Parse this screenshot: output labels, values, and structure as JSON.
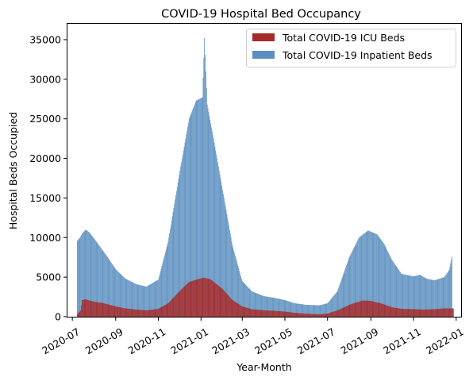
{
  "chart_data": {
    "type": "bar",
    "stacking": "overlay",
    "title": "COVID-19 Hospital Bed Occupancy",
    "xlabel": "Year-Month",
    "ylabel": "Hospital Beds Occupied",
    "xlim": [
      "2020-06-24",
      "2022-01-08"
    ],
    "ylim": [
      0,
      37000
    ],
    "x_ticks": [
      "2020-07",
      "2020-09",
      "2020-11",
      "2021-01",
      "2021-03",
      "2021-05",
      "2021-07",
      "2021-09",
      "2021-11",
      "2022-01"
    ],
    "y_ticks": [
      0,
      5000,
      10000,
      15000,
      20000,
      25000,
      30000,
      35000
    ],
    "grid": false,
    "legend": "top-right",
    "series": [
      {
        "name": "Total COVID-19 ICU Beds",
        "color": "#a52a2a",
        "points": [
          [
            "2020-07-08",
            300
          ],
          [
            "2020-07-13",
            800
          ],
          [
            "2020-07-15",
            2100
          ],
          [
            "2020-07-20",
            2200
          ],
          [
            "2020-08-01",
            1900
          ],
          [
            "2020-08-15",
            1700
          ],
          [
            "2020-09-01",
            1300
          ],
          [
            "2020-09-15",
            1050
          ],
          [
            "2020-10-01",
            900
          ],
          [
            "2020-10-15",
            800
          ],
          [
            "2020-11-01",
            1000
          ],
          [
            "2020-11-15",
            1700
          ],
          [
            "2020-12-01",
            3200
          ],
          [
            "2020-12-15",
            4400
          ],
          [
            "2021-01-05",
            4950
          ],
          [
            "2021-01-15",
            4700
          ],
          [
            "2021-02-01",
            3500
          ],
          [
            "2021-02-15",
            2100
          ],
          [
            "2021-03-01",
            1300
          ],
          [
            "2021-03-15",
            950
          ],
          [
            "2021-04-01",
            800
          ],
          [
            "2021-04-15",
            750
          ],
          [
            "2021-05-01",
            650
          ],
          [
            "2021-05-15",
            500
          ],
          [
            "2021-06-01",
            380
          ],
          [
            "2021-06-20",
            300
          ],
          [
            "2021-07-01",
            400
          ],
          [
            "2021-07-15",
            800
          ],
          [
            "2021-08-01",
            1500
          ],
          [
            "2021-08-20",
            2050
          ],
          [
            "2021-09-01",
            2000
          ],
          [
            "2021-09-15",
            1700
          ],
          [
            "2021-10-01",
            1200
          ],
          [
            "2021-10-15",
            1000
          ],
          [
            "2021-11-01",
            950
          ],
          [
            "2021-11-15",
            900
          ],
          [
            "2021-12-01",
            950
          ],
          [
            "2021-12-15",
            1050
          ],
          [
            "2021-12-28",
            1050
          ]
        ]
      },
      {
        "name": "Total COVID-19 Inpatient Beds",
        "color": "#5b8fbf",
        "points": [
          [
            "2020-07-08",
            9600
          ],
          [
            "2020-07-12",
            10000
          ],
          [
            "2020-07-15",
            10500
          ],
          [
            "2020-07-20",
            11000
          ],
          [
            "2020-07-25",
            10700
          ],
          [
            "2020-08-01",
            9900
          ],
          [
            "2020-08-10",
            8800
          ],
          [
            "2020-08-20",
            7600
          ],
          [
            "2020-09-01",
            6000
          ],
          [
            "2020-09-15",
            4800
          ],
          [
            "2020-10-01",
            4100
          ],
          [
            "2020-10-15",
            3800
          ],
          [
            "2020-11-01",
            4700
          ],
          [
            "2020-11-15",
            9500
          ],
          [
            "2020-12-01",
            18000
          ],
          [
            "2020-12-15",
            25000
          ],
          [
            "2020-12-25",
            27300
          ],
          [
            "2021-01-03",
            27700
          ],
          [
            "2021-01-06",
            35200
          ],
          [
            "2021-01-10",
            26800
          ],
          [
            "2021-01-20",
            22000
          ],
          [
            "2021-02-01",
            16000
          ],
          [
            "2021-02-15",
            9000
          ],
          [
            "2021-03-01",
            4500
          ],
          [
            "2021-03-15",
            3200
          ],
          [
            "2021-04-01",
            2600
          ],
          [
            "2021-04-15",
            2400
          ],
          [
            "2021-05-01",
            2100
          ],
          [
            "2021-05-15",
            1700
          ],
          [
            "2021-06-01",
            1500
          ],
          [
            "2021-06-20",
            1450
          ],
          [
            "2021-07-01",
            1700
          ],
          [
            "2021-07-15",
            3200
          ],
          [
            "2021-08-01",
            7500
          ],
          [
            "2021-08-15",
            10000
          ],
          [
            "2021-08-28",
            10900
          ],
          [
            "2021-09-10",
            10400
          ],
          [
            "2021-09-20",
            9200
          ],
          [
            "2021-10-01",
            7200
          ],
          [
            "2021-10-15",
            5400
          ],
          [
            "2021-11-01",
            5100
          ],
          [
            "2021-11-10",
            5300
          ],
          [
            "2021-11-20",
            4800
          ],
          [
            "2021-12-01",
            4600
          ],
          [
            "2021-12-15",
            5000
          ],
          [
            "2021-12-22",
            5900
          ],
          [
            "2021-12-26",
            7600
          ]
        ]
      }
    ]
  }
}
